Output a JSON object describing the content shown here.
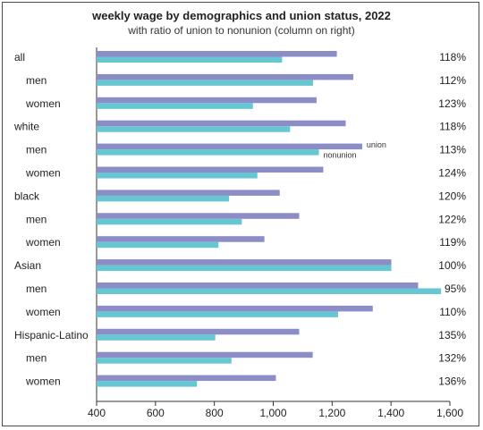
{
  "chart_data": {
    "type": "bar",
    "orientation": "horizontal",
    "title": "weekly wage by demographics and union status, 2022",
    "subtitle": "with ratio of union to nonunion (column on right)",
    "categories": [
      "all",
      "men",
      "women",
      "white",
      "men",
      "women",
      "black",
      "men",
      "women",
      "Asian",
      "men",
      "women",
      "Hispanic-Latino",
      "men",
      "women"
    ],
    "category_indent": [
      false,
      true,
      true,
      false,
      true,
      true,
      false,
      true,
      true,
      false,
      true,
      true,
      false,
      true,
      true
    ],
    "series": [
      {
        "name": "union",
        "color": "#8c8cc7",
        "values": [
          1216,
          1272,
          1147,
          1246,
          1302,
          1170,
          1022,
          1088,
          970,
          1401,
          1492,
          1338,
          1088,
          1134,
          1009
        ]
      },
      {
        "name": "nonunion",
        "color": "#66c6d1",
        "values": [
          1030,
          1135,
          931,
          1057,
          1155,
          946,
          850,
          893,
          814,
          1401,
          1570,
          1220,
          803,
          858,
          741
        ]
      }
    ],
    "ratios": [
      "118%",
      "112%",
      "123%",
      "118%",
      "113%",
      "124%",
      "120%",
      "122%",
      "119%",
      "100%",
      "95%",
      "110%",
      "135%",
      "132%",
      "136%"
    ],
    "legend_row": 4,
    "xticks": [
      "400",
      "600",
      "800",
      "1,000",
      "1,200",
      "1,400",
      "1,600"
    ],
    "xlim": [
      400,
      1600
    ],
    "grid": false
  }
}
